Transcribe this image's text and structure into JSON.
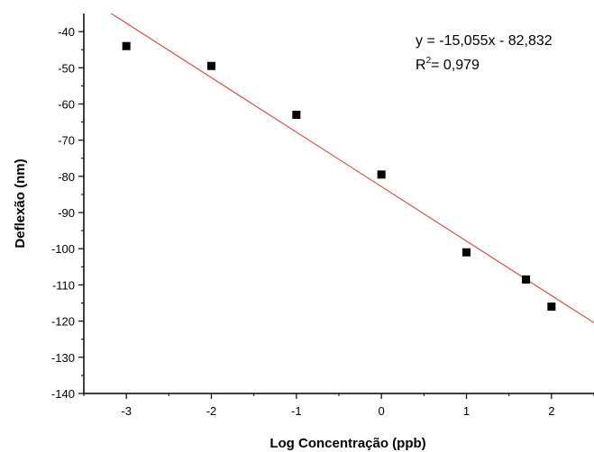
{
  "chart_data": {
    "type": "scatter",
    "xlabel": "Log Concentração (ppb)",
    "ylabel": "Deflexão (nm)",
    "xlim": [
      -3.5,
      2.5
    ],
    "ylim": [
      -140,
      -35
    ],
    "xticks": [
      -3,
      -2,
      -1,
      0,
      1,
      2
    ],
    "yticks": [
      -140,
      -130,
      -120,
      -110,
      -100,
      -90,
      -80,
      -70,
      -60,
      -50,
      -40
    ],
    "xtick_labels": [
      "-3",
      "-2",
      "-1",
      "0",
      "1",
      "2"
    ],
    "ytick_labels": [
      "-140",
      "-130",
      "-120",
      "-110",
      "-100",
      "-90",
      "-80",
      "-70",
      "-60",
      "-50",
      "-40"
    ],
    "points": [
      {
        "x": -3,
        "y": -44
      },
      {
        "x": -2,
        "y": -49.5
      },
      {
        "x": -1,
        "y": -63
      },
      {
        "x": 0,
        "y": -79.5
      },
      {
        "x": 1,
        "y": -101
      },
      {
        "x": 1.7,
        "y": -108.5
      },
      {
        "x": 2,
        "y": -116
      }
    ],
    "fit": {
      "slope": -15.055,
      "intercept": -82.832
    },
    "equation_text": "y = -15,055x - 82,832",
    "r2_prefix": "R",
    "r2_sup": "2",
    "r2_suffix": "= 0,979",
    "grid": false,
    "colors": {
      "points": "#000000",
      "fit_line": "#e8302a",
      "axes": "#000000"
    }
  }
}
